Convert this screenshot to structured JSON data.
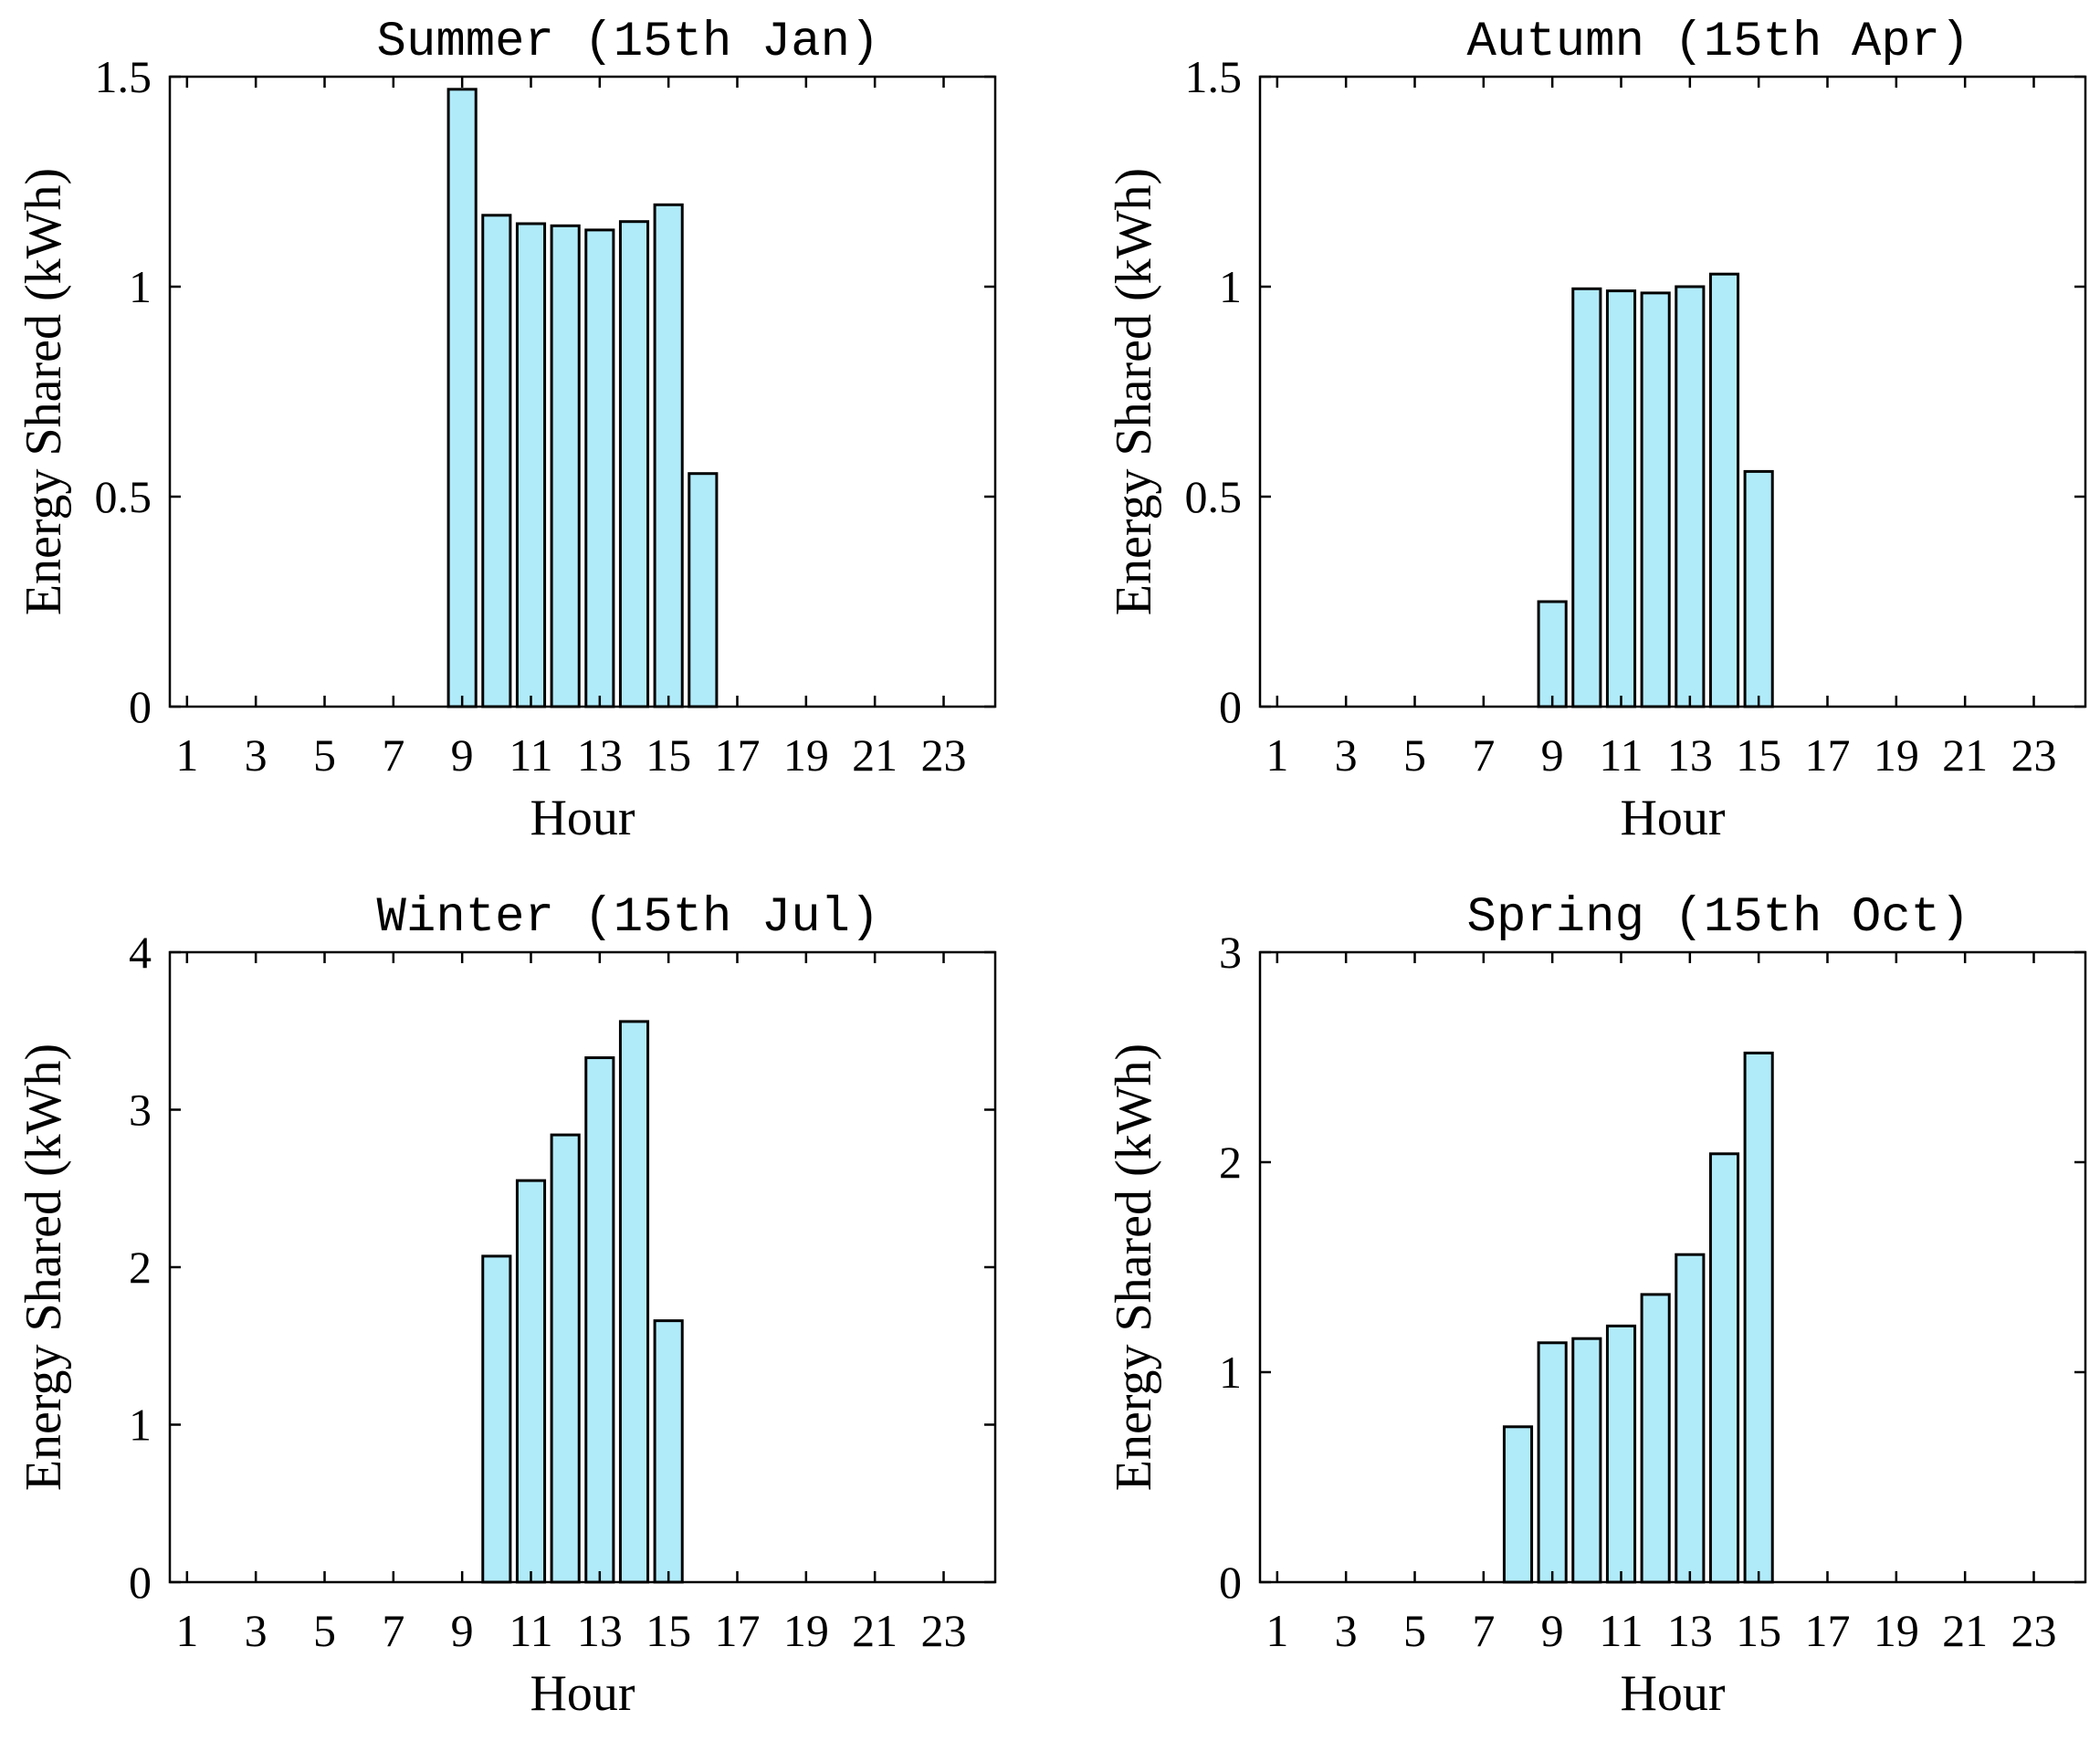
{
  "chart_data": [
    {
      "type": "bar",
      "title": "Summer (15th Jan)",
      "xlabel": "Hour",
      "ylabel": "Energy Shared (kWh)",
      "ylim": [
        0,
        1.5
      ],
      "yticks": [
        0,
        0.5,
        1,
        1.5
      ],
      "ytick_labels": [
        "0",
        "0.5",
        "1",
        "1.5"
      ],
      "xlim": [
        0.5,
        24.5
      ],
      "xticks": [
        1,
        3,
        5,
        7,
        9,
        11,
        13,
        15,
        17,
        19,
        21,
        23
      ],
      "xtick_labels": [
        "1",
        "3",
        "5",
        "7",
        "9",
        "11",
        "13",
        "15",
        "17",
        "19",
        "21",
        "23"
      ],
      "categories": [
        1,
        2,
        3,
        4,
        5,
        6,
        7,
        8,
        9,
        10,
        11,
        12,
        13,
        14,
        15,
        16,
        17,
        18,
        19,
        20,
        21,
        22,
        23,
        24
      ],
      "values": [
        0,
        0,
        0,
        0,
        0,
        0,
        0,
        0,
        1.47,
        1.17,
        1.15,
        1.145,
        1.135,
        1.155,
        1.195,
        0.555,
        0,
        0,
        0,
        0,
        0,
        0,
        0,
        0
      ],
      "grid": false
    },
    {
      "type": "bar",
      "title": "Autumn (15th Apr)",
      "xlabel": "Hour",
      "ylabel": "Energy Shared (kWh)",
      "ylim": [
        0,
        1.5
      ],
      "yticks": [
        0,
        0.5,
        1,
        1.5
      ],
      "ytick_labels": [
        "0",
        "0.5",
        "1",
        "1.5"
      ],
      "xlim": [
        0.5,
        24.5
      ],
      "xticks": [
        1,
        3,
        5,
        7,
        9,
        11,
        13,
        15,
        17,
        19,
        21,
        23
      ],
      "xtick_labels": [
        "1",
        "3",
        "5",
        "7",
        "9",
        "11",
        "13",
        "15",
        "17",
        "19",
        "21",
        "23"
      ],
      "categories": [
        1,
        2,
        3,
        4,
        5,
        6,
        7,
        8,
        9,
        10,
        11,
        12,
        13,
        14,
        15,
        16,
        17,
        18,
        19,
        20,
        21,
        22,
        23,
        24
      ],
      "values": [
        0,
        0,
        0,
        0,
        0,
        0,
        0,
        0,
        0.25,
        0.995,
        0.99,
        0.985,
        1.0,
        1.03,
        0.56,
        0,
        0,
        0,
        0,
        0,
        0,
        0,
        0,
        0
      ],
      "grid": false
    },
    {
      "type": "bar",
      "title": "Winter (15th Jul)",
      "xlabel": "Hour",
      "ylabel": "Energy Shared (kWh)",
      "ylim": [
        0,
        4
      ],
      "yticks": [
        0,
        1,
        2,
        3,
        4
      ],
      "ytick_labels": [
        "0",
        "1",
        "2",
        "3",
        "4"
      ],
      "xlim": [
        0.5,
        24.5
      ],
      "xticks": [
        1,
        3,
        5,
        7,
        9,
        11,
        13,
        15,
        17,
        19,
        21,
        23
      ],
      "xtick_labels": [
        "1",
        "3",
        "5",
        "7",
        "9",
        "11",
        "13",
        "15",
        "17",
        "19",
        "21",
        "23"
      ],
      "categories": [
        1,
        2,
        3,
        4,
        5,
        6,
        7,
        8,
        9,
        10,
        11,
        12,
        13,
        14,
        15,
        16,
        17,
        18,
        19,
        20,
        21,
        22,
        23,
        24
      ],
      "values": [
        0,
        0,
        0,
        0,
        0,
        0,
        0,
        0,
        0,
        2.07,
        2.55,
        2.84,
        3.33,
        3.56,
        1.66,
        0,
        0,
        0,
        0,
        0,
        0,
        0,
        0,
        0
      ],
      "grid": false
    },
    {
      "type": "bar",
      "title": "Spring (15th Oct)",
      "xlabel": "Hour",
      "ylabel": "Energy Shared (kWh)",
      "ylim": [
        0,
        3
      ],
      "yticks": [
        0,
        1,
        2,
        3
      ],
      "ytick_labels": [
        "0",
        "1",
        "2",
        "3"
      ],
      "xlim": [
        0.5,
        24.5
      ],
      "xticks": [
        1,
        3,
        5,
        7,
        9,
        11,
        13,
        15,
        17,
        19,
        21,
        23
      ],
      "xtick_labels": [
        "1",
        "3",
        "5",
        "7",
        "9",
        "11",
        "13",
        "15",
        "17",
        "19",
        "21",
        "23"
      ],
      "categories": [
        1,
        2,
        3,
        4,
        5,
        6,
        7,
        8,
        9,
        10,
        11,
        12,
        13,
        14,
        15,
        16,
        17,
        18,
        19,
        20,
        21,
        22,
        23,
        24
      ],
      "values": [
        0,
        0,
        0,
        0,
        0,
        0,
        0,
        0.74,
        1.14,
        1.16,
        1.22,
        1.37,
        1.56,
        2.04,
        2.52,
        0,
        0,
        0,
        0,
        0,
        0,
        0,
        0,
        0
      ],
      "grid": false
    }
  ],
  "colors": {
    "bar_fill": "#b0ebfa",
    "bar_edge": "#000000",
    "axis": "#000000",
    "background": "#ffffff"
  }
}
